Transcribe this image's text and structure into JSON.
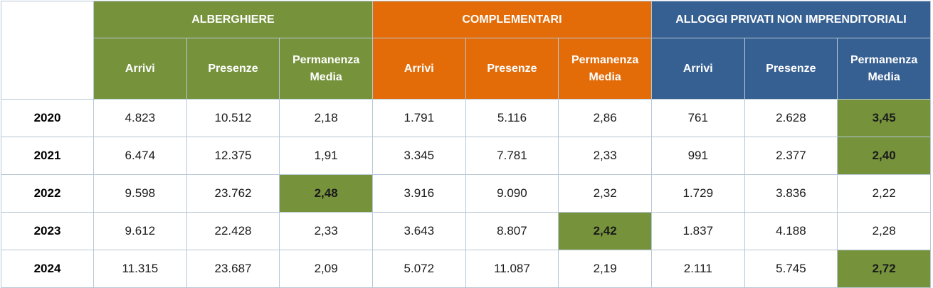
{
  "colors": {
    "alberghiere": "#76933c",
    "complementari": "#e36c09",
    "alloggi": "#376092",
    "highlight": "#76933c"
  },
  "groups": [
    {
      "label": "ALBERGHIERE",
      "subheaders": [
        "Arrivi",
        "Presenze",
        "Permanenza Media"
      ]
    },
    {
      "label": "COMPLEMENTARI",
      "subheaders": [
        "Arrivi",
        "Presenze",
        "Permanenza Media"
      ]
    },
    {
      "label": "ALLOGGI PRIVATI NON IMPRENDITORIALI",
      "subheaders": [
        "Arrivi",
        "Presenze",
        "Permanenza Media"
      ]
    }
  ],
  "rows": [
    {
      "year": "2020",
      "cells": [
        "4.823",
        "10.512",
        "2,18",
        "1.791",
        "5.116",
        "2,86",
        "761",
        "2.628",
        "3,45"
      ]
    },
    {
      "year": "2021",
      "cells": [
        "6.474",
        "12.375",
        "1,91",
        "3.345",
        "7.781",
        "2,33",
        "991",
        "2.377",
        "2,40"
      ]
    },
    {
      "year": "2022",
      "cells": [
        "9.598",
        "23.762",
        "2,48",
        "3.916",
        "9.090",
        "2,32",
        "1.729",
        "3.836",
        "2,22"
      ]
    },
    {
      "year": "2023",
      "cells": [
        "9.612",
        "22.428",
        "2,33",
        "3.643",
        "8.807",
        "2,42",
        "1.837",
        "4.188",
        "2,28"
      ]
    },
    {
      "year": "2024",
      "cells": [
        "11.315",
        "23.687",
        "2,09",
        "5.072",
        "11.087",
        "2,19",
        "2.111",
        "5.745",
        "2,72"
      ]
    }
  ],
  "highlights": {
    "0": [
      8
    ],
    "1": [
      8
    ],
    "2": [
      2
    ],
    "3": [
      5
    ],
    "4": [
      8
    ]
  },
  "chart_data": {
    "type": "table",
    "row_labels": [
      "2020",
      "2021",
      "2022",
      "2023",
      "2024"
    ],
    "column_groups": [
      "ALBERGHIERE",
      "COMPLEMENTARI",
      "ALLOGGI PRIVATI NON IMPRENDITORIALI"
    ],
    "columns": [
      "Arrivi",
      "Presenze",
      "Permanenza Media"
    ],
    "series": [
      {
        "name": "ALBERGHIERE Arrivi",
        "values": [
          4823,
          6474,
          9598,
          9612,
          11315
        ]
      },
      {
        "name": "ALBERGHIERE Presenze",
        "values": [
          10512,
          12375,
          23762,
          22428,
          23687
        ]
      },
      {
        "name": "ALBERGHIERE Permanenza Media",
        "values": [
          2.18,
          1.91,
          2.48,
          2.33,
          2.09
        ]
      },
      {
        "name": "COMPLEMENTARI Arrivi",
        "values": [
          1791,
          3345,
          3916,
          3643,
          5072
        ]
      },
      {
        "name": "COMPLEMENTARI Presenze",
        "values": [
          5116,
          7781,
          9090,
          8807,
          11087
        ]
      },
      {
        "name": "COMPLEMENTARI Permanenza Media",
        "values": [
          2.86,
          2.33,
          2.32,
          2.42,
          2.19
        ]
      },
      {
        "name": "ALLOGGI PRIVATI NON IMPRENDITORIALI Arrivi",
        "values": [
          761,
          991,
          1729,
          1837,
          2111
        ]
      },
      {
        "name": "ALLOGGI PRIVATI NON IMPRENDITORIALI Presenze",
        "values": [
          2628,
          2377,
          3836,
          4188,
          5745
        ]
      },
      {
        "name": "ALLOGGI PRIVATI NON IMPRENDITORIALI Permanenza Media",
        "values": [
          3.45,
          2.4,
          2.22,
          2.28,
          2.72
        ]
      }
    ]
  }
}
